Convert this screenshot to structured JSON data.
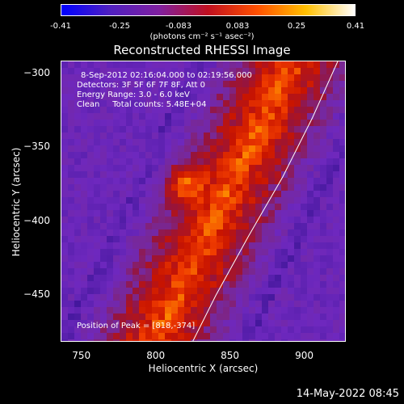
{
  "colorbar": {
    "ticks": [
      "-0.41",
      "-0.25",
      "-0.083",
      "0.083",
      "0.25",
      "0.41"
    ],
    "label": "(photons cm⁻² s⁻¹ asec⁻²)",
    "colors": [
      "#0000ff",
      "#5020c0",
      "#8020a0",
      "#c01020",
      "#ff5000",
      "#ffc000",
      "#ffffff"
    ]
  },
  "title": "Reconstructed RHESSI Image",
  "info": {
    "time": "8-Sep-2012 02:16:04.000 to 02:19:56.000",
    "detectors": "Detectors: 3F 5F 6F 7F 8F, Att 0",
    "energy": "Energy Range: 3.0 - 6.0 keV",
    "clean": "Clean     Total counts: 5.48E+04",
    "peak": "Position of Peak = [818,-374]"
  },
  "timestamp": "14-May-2022 08:45",
  "chart_data": {
    "type": "heatmap",
    "title": "Reconstructed RHESSI Image",
    "xlabel": "Heliocentric X (arcsec)",
    "ylabel": "Heliocentric Y (arcsec)",
    "xlim": [
      736,
      928
    ],
    "ylim": [
      -482,
      -292
    ],
    "x_ticks": [
      "750",
      "800",
      "850",
      "900"
    ],
    "x_tick_values": [
      750,
      800,
      850,
      900
    ],
    "y_ticks": [
      "-300",
      "-350",
      "-400",
      "-450"
    ],
    "y_tick_values": [
      -300,
      -350,
      -400,
      -450
    ],
    "zlim": [
      -0.41,
      0.41
    ],
    "peak": [
      818,
      -374
    ],
    "limb_curve": [
      [
        922,
        -292
      ],
      [
        905,
        -330
      ],
      [
        885,
        -370
      ],
      [
        862,
        -410
      ],
      [
        840,
        -450
      ],
      [
        824,
        -482
      ]
    ]
  }
}
